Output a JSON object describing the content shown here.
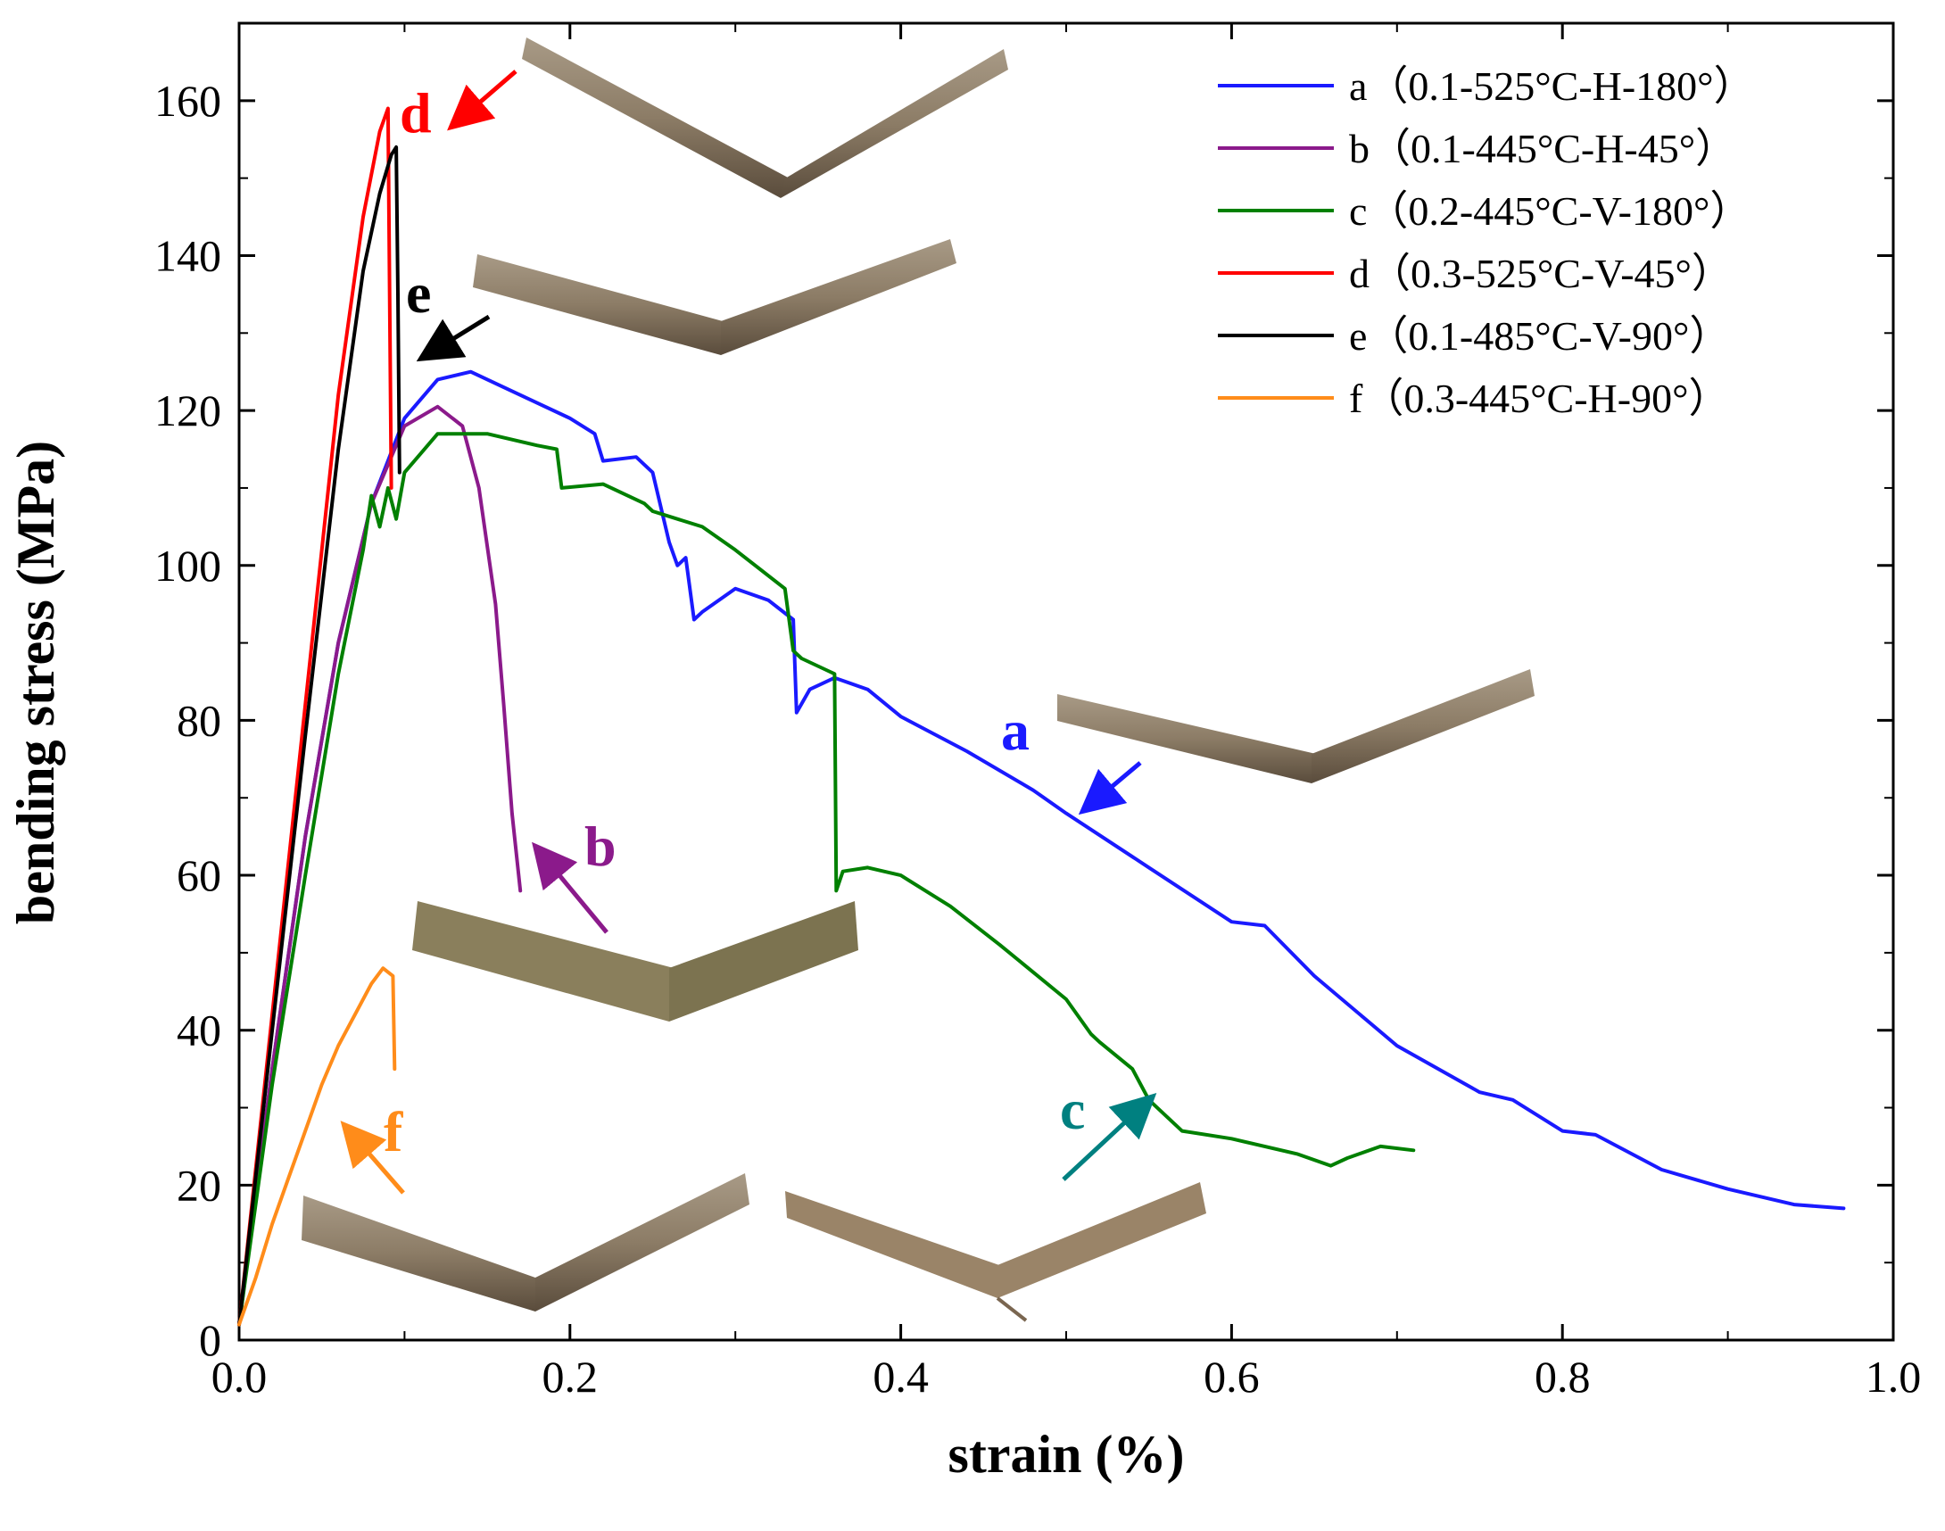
{
  "chart_data": {
    "type": "line",
    "title": "",
    "xlabel": "strain (%)",
    "ylabel": "bending stress (MPa)",
    "xlim": [
      0,
      1.0
    ],
    "ylim": [
      0,
      170
    ],
    "xticks": [
      0.0,
      0.2,
      0.4,
      0.6,
      0.8,
      1.0
    ],
    "xtick_labels": [
      "0.0",
      "0.2",
      "0.4",
      "0.6",
      "0.8",
      "1.0"
    ],
    "yticks": [
      0,
      20,
      40,
      60,
      80,
      100,
      120,
      140,
      160
    ],
    "ytick_labels": [
      "0",
      "20",
      "40",
      "60",
      "80",
      "100",
      "120",
      "140",
      "160"
    ],
    "legend_position": "top-right",
    "series": [
      {
        "id": "a",
        "name": "a（0.1-525°C-H-180°）",
        "color": "#1a1aff",
        "x": [
          0.0,
          0.02,
          0.04,
          0.06,
          0.08,
          0.1,
          0.12,
          0.14,
          0.16,
          0.18,
          0.2,
          0.215,
          0.22,
          0.24,
          0.25,
          0.26,
          0.265,
          0.27,
          0.275,
          0.28,
          0.3,
          0.32,
          0.335,
          0.337,
          0.345,
          0.36,
          0.38,
          0.4,
          0.44,
          0.48,
          0.5,
          0.55,
          0.6,
          0.62,
          0.65,
          0.7,
          0.75,
          0.77,
          0.8,
          0.82,
          0.86,
          0.9,
          0.94,
          0.97
        ],
        "y": [
          2,
          35,
          65,
          90,
          108,
          119,
          124,
          125,
          123,
          121,
          119,
          117,
          113.5,
          114,
          112,
          103,
          100,
          101,
          93,
          94,
          97,
          95.5,
          93,
          81,
          84,
          85.5,
          84,
          80.5,
          76,
          71,
          68,
          61,
          54,
          53.5,
          47,
          38,
          32,
          31,
          27,
          26.5,
          22,
          19.5,
          17.5,
          17
        ]
      },
      {
        "id": "b",
        "name": "b（0.1-445°C-H-45°）",
        "color": "#8b1a8b",
        "x": [
          0.0,
          0.02,
          0.04,
          0.06,
          0.08,
          0.1,
          0.12,
          0.135,
          0.145,
          0.155,
          0.16,
          0.165,
          0.17
        ],
        "y": [
          2,
          35,
          65,
          90,
          108,
          118,
          120.5,
          118,
          110,
          95,
          82,
          68,
          58
        ]
      },
      {
        "id": "c",
        "name": "c（0.2-445°C-V-180°）",
        "color": "#008000",
        "x": [
          0.0,
          0.02,
          0.04,
          0.06,
          0.075,
          0.08,
          0.085,
          0.09,
          0.095,
          0.1,
          0.12,
          0.15,
          0.18,
          0.192,
          0.195,
          0.22,
          0.245,
          0.25,
          0.28,
          0.3,
          0.33,
          0.335,
          0.34,
          0.355,
          0.36,
          0.361,
          0.365,
          0.38,
          0.4,
          0.43,
          0.46,
          0.5,
          0.515,
          0.52,
          0.54,
          0.55,
          0.57,
          0.6,
          0.64,
          0.66,
          0.67,
          0.69,
          0.71
        ],
        "y": [
          2,
          33,
          60,
          86,
          102,
          109,
          105,
          110,
          106,
          112,
          117,
          117,
          115.5,
          115,
          110,
          110.5,
          108,
          107,
          105,
          102,
          97,
          89,
          88,
          86.5,
          86,
          58,
          60.5,
          61,
          60,
          56,
          51,
          44,
          39.5,
          38.5,
          35,
          31,
          27,
          26,
          24,
          22.5,
          23.5,
          25,
          24.5
        ]
      },
      {
        "id": "d",
        "name": "d（0.3-525°C-V-45°）",
        "color": "#ff0000",
        "x": [
          0.0,
          0.02,
          0.04,
          0.06,
          0.075,
          0.085,
          0.09,
          0.091,
          0.092
        ],
        "y": [
          2,
          42,
          82,
          122,
          145,
          156,
          159,
          135,
          110
        ]
      },
      {
        "id": "e",
        "name": "e（0.1-485°C-V-90°）",
        "color": "#000000",
        "x": [
          0.0,
          0.02,
          0.04,
          0.06,
          0.075,
          0.085,
          0.092,
          0.095,
          0.096,
          0.097
        ],
        "y": [
          2,
          40,
          78,
          115,
          138,
          148,
          153,
          154,
          135,
          112
        ]
      },
      {
        "id": "f",
        "name": "f（0.3-445°C-H-90°）",
        "color": "#ff8c1a",
        "x": [
          0.0,
          0.01,
          0.02,
          0.03,
          0.04,
          0.05,
          0.06,
          0.07,
          0.08,
          0.087,
          0.093,
          0.094
        ],
        "y": [
          2,
          8,
          15,
          21,
          27,
          33,
          38,
          42,
          46,
          48,
          47,
          35
        ]
      }
    ],
    "annotations": [
      {
        "id": "d",
        "text": "d",
        "color": "#ff0000"
      },
      {
        "id": "e",
        "text": "e",
        "color": "#000000"
      },
      {
        "id": "a",
        "text": "a",
        "color": "#1a1aff"
      },
      {
        "id": "b",
        "text": "b",
        "color": "#8b1a8b"
      },
      {
        "id": "f",
        "text": "f",
        "color": "#ff8c1a"
      },
      {
        "id": "c",
        "text": "c",
        "color": "#008080"
      }
    ]
  }
}
